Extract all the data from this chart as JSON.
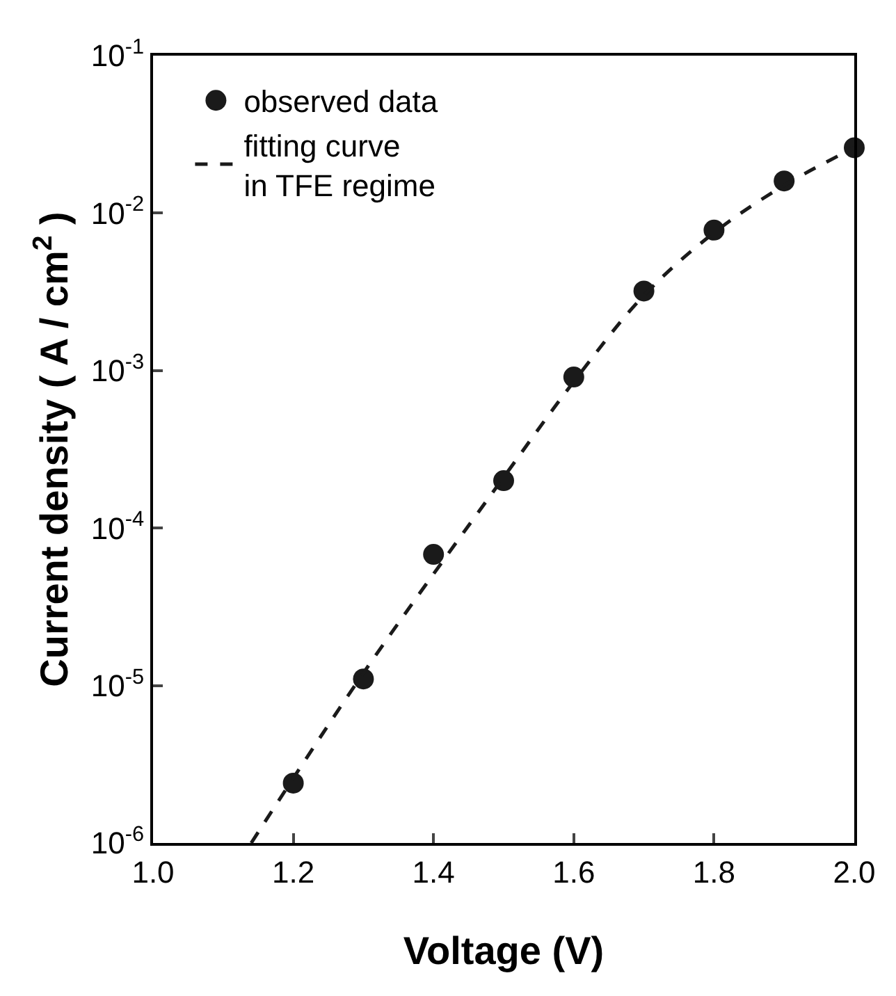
{
  "chart_data": {
    "type": "scatter",
    "xlabel": "Voltage (V)",
    "ylabel": "Current density ( A / cm$^{2}$ )",
    "log": "y",
    "xlim": [
      1.0,
      2.0
    ],
    "xticks": [
      {
        "value": 1.0,
        "label": "1.0"
      },
      1.2,
      1.4,
      1.6,
      1.8,
      {
        "value": 2.0,
        "label": "2.0"
      }
    ],
    "ylim": [
      1e-06,
      0.1
    ],
    "yticks": [
      {
        "value": 1e-06,
        "label": "10$^{-6}$"
      },
      {
        "value": 1e-05,
        "label": "10$^{-5}$"
      },
      {
        "value": 0.0001,
        "label": "10$^{-4}$"
      },
      {
        "value": 0.001,
        "label": "10$^{-3}$"
      },
      {
        "value": 0.01,
        "label": "10$^{-2}$"
      },
      {
        "value": 0.1,
        "label": "10$^{-1}$"
      }
    ],
    "legend": "top left",
    "series": [
      {
        "name": "observed data",
        "marker": "circle",
        "color": "#1a1a1a",
        "x": [
          1.2,
          1.3,
          1.4,
          1.5,
          1.6,
          1.7,
          1.8,
          1.9,
          2.0
        ],
        "values": [
          2.4e-06,
          1.1e-05,
          6.8e-05,
          0.0002,
          0.00091,
          0.0032,
          0.0078,
          0.016,
          0.026
        ]
      },
      {
        "name": "fitting curve\nin TFE regime",
        "type": "line",
        "line_style": "dashed",
        "marker": "none",
        "color": "#1a1a1a",
        "x": [
          1.14,
          1.3,
          1.5,
          1.6,
          1.7,
          1.8,
          1.9,
          2.0
        ],
        "values": [
          1e-06,
          1.2e-05,
          0.00021,
          0.00085,
          0.003,
          0.0075,
          0.015,
          0.026
        ]
      }
    ]
  }
}
